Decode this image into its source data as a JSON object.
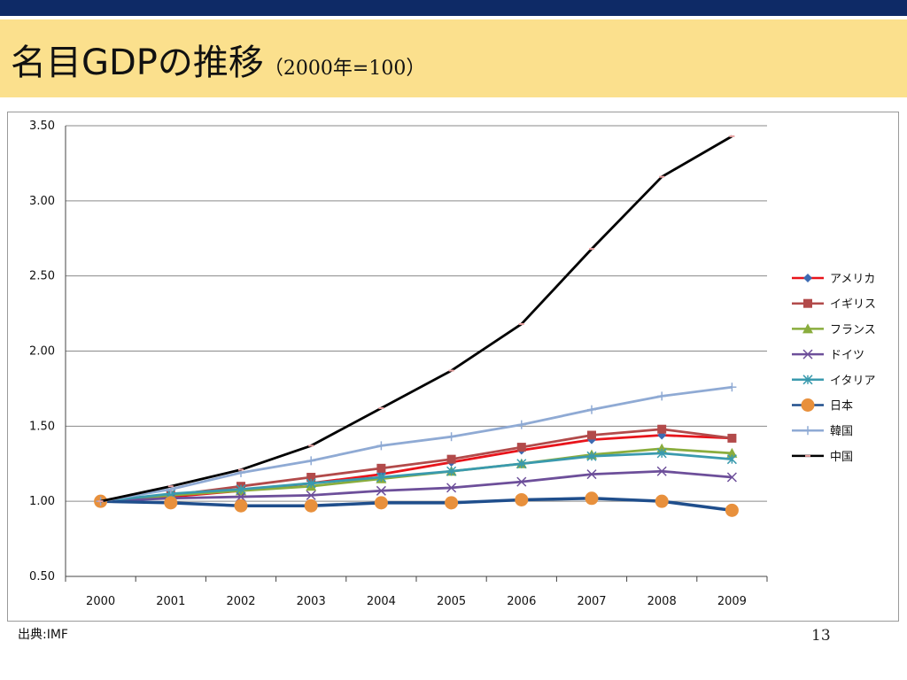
{
  "slide": {
    "title": "名目GDPの推移",
    "subtitle": "（2000年=100）",
    "source": "出典:IMF",
    "page_number": "13"
  },
  "colors": {
    "top_bar": "#0e2a66",
    "header_bg": "#fbe08d"
  },
  "chart_data": {
    "type": "line",
    "title": "",
    "xlabel": "",
    "ylabel": "",
    "x": [
      "2000",
      "2001",
      "2002",
      "2003",
      "2004",
      "2005",
      "2006",
      "2007",
      "2008",
      "2009"
    ],
    "ylim": [
      0.5,
      3.5
    ],
    "yticks": [
      "0.50",
      "1.00",
      "1.50",
      "2.00",
      "2.50",
      "3.00",
      "3.50"
    ],
    "grid": true,
    "legend_position": "right",
    "series": [
      {
        "name": "アメリカ",
        "color": "#e8141b",
        "marker": "diamond",
        "marker_color": "#3d6bb3",
        "values": [
          1.0,
          1.03,
          1.07,
          1.12,
          1.18,
          1.26,
          1.34,
          1.41,
          1.44,
          1.42
        ]
      },
      {
        "name": "イギリス",
        "color": "#b24a4a",
        "marker": "square",
        "marker_color": "#b24a4a",
        "values": [
          1.0,
          1.04,
          1.1,
          1.16,
          1.22,
          1.28,
          1.36,
          1.44,
          1.48,
          1.42
        ]
      },
      {
        "name": "フランス",
        "color": "#8aad3d",
        "marker": "triangle",
        "marker_color": "#8aad3d",
        "values": [
          1.0,
          1.04,
          1.07,
          1.1,
          1.15,
          1.2,
          1.25,
          1.31,
          1.35,
          1.32
        ]
      },
      {
        "name": "ドイツ",
        "color": "#6d4f9a",
        "marker": "x",
        "marker_color": "#6d4f9a",
        "values": [
          1.0,
          1.02,
          1.03,
          1.04,
          1.07,
          1.09,
          1.13,
          1.18,
          1.2,
          1.16
        ]
      },
      {
        "name": "イタリア",
        "color": "#3a9aae",
        "marker": "asterisk",
        "marker_color": "#3a9aae",
        "values": [
          1.0,
          1.05,
          1.08,
          1.12,
          1.16,
          1.2,
          1.25,
          1.3,
          1.32,
          1.28
        ]
      },
      {
        "name": "日本",
        "color": "#1f4e8c",
        "marker": "circle",
        "marker_color": "#e8903c",
        "values": [
          1.0,
          0.99,
          0.97,
          0.97,
          0.99,
          0.99,
          1.01,
          1.02,
          1.0,
          0.94
        ]
      },
      {
        "name": "韓国",
        "color": "#8faad4",
        "marker": "plus",
        "marker_color": "#8faad4",
        "values": [
          1.0,
          1.08,
          1.19,
          1.27,
          1.37,
          1.43,
          1.51,
          1.61,
          1.7,
          1.76
        ]
      },
      {
        "name": "中国",
        "color": "#000000",
        "marker": "dash",
        "marker_color": "#e8a0a0",
        "values": [
          1.0,
          1.1,
          1.21,
          1.37,
          1.62,
          1.87,
          2.18,
          2.68,
          3.16,
          3.43
        ]
      }
    ]
  }
}
